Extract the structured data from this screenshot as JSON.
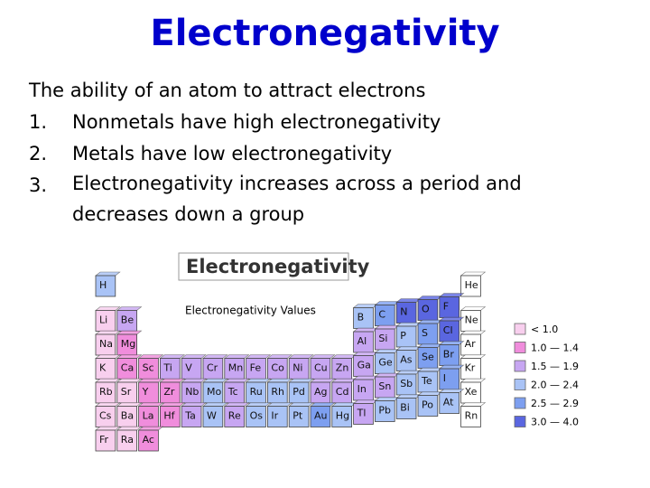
{
  "slide": {
    "title": "Electronegativity",
    "intro": "The ability of an atom to attract electrons",
    "list": [
      {
        "number": "1.",
        "text": "Nonmetals have high electronegativity"
      },
      {
        "number": "2.",
        "text": "Metals have low electronegativity"
      },
      {
        "number": "3.",
        "text": "Electronegativity increases across a period and decreases down a group"
      }
    ]
  },
  "figure": {
    "title": "Electronegativity",
    "subtitle": "Electronegativity Values",
    "legend": [
      {
        "label": "< 1.0",
        "color": "#f8cfee"
      },
      {
        "label": "1.0 — 1.4",
        "color": "#f08ddc"
      },
      {
        "label": "1.5 — 1.9",
        "color": "#c7a6f2"
      },
      {
        "label": "2.0 — 2.4",
        "color": "#a9c3f6"
      },
      {
        "label": "2.5 — 2.9",
        "color": "#7d9ff0"
      },
      {
        "label": "3.0 — 4.0",
        "color": "#5a66e0"
      }
    ],
    "periods": [
      [
        {
          "symbol": "H",
          "color": "#a9c3f6"
        },
        {
          "symbol": "He",
          "color": "#ffffff"
        }
      ],
      [
        {
          "symbol": "Li",
          "color": "#f8cfee"
        },
        {
          "symbol": "Be",
          "color": "#c7a6f2"
        },
        {
          "symbol": "B",
          "color": "#a9c3f6"
        },
        {
          "symbol": "C",
          "color": "#7d9ff0"
        },
        {
          "symbol": "N",
          "color": "#5a66e0"
        },
        {
          "symbol": "O",
          "color": "#5a66e0"
        },
        {
          "symbol": "F",
          "color": "#5a66e0"
        },
        {
          "symbol": "Ne",
          "color": "#ffffff"
        }
      ],
      [
        {
          "symbol": "Na",
          "color": "#f8cfee"
        },
        {
          "symbol": "Mg",
          "color": "#f08ddc"
        },
        {
          "symbol": "Al",
          "color": "#c7a6f2"
        },
        {
          "symbol": "Si",
          "color": "#c7a6f2"
        },
        {
          "symbol": "P",
          "color": "#a9c3f6"
        },
        {
          "symbol": "S",
          "color": "#7d9ff0"
        },
        {
          "symbol": "Cl",
          "color": "#5a66e0"
        },
        {
          "symbol": "Ar",
          "color": "#ffffff"
        }
      ],
      [
        {
          "symbol": "K",
          "color": "#f8cfee"
        },
        {
          "symbol": "Ca",
          "color": "#f08ddc"
        },
        {
          "symbol": "Sc",
          "color": "#f08ddc"
        },
        {
          "symbol": "Ti",
          "color": "#c7a6f2"
        },
        {
          "symbol": "V",
          "color": "#c7a6f2"
        },
        {
          "symbol": "Cr",
          "color": "#c7a6f2"
        },
        {
          "symbol": "Mn",
          "color": "#c7a6f2"
        },
        {
          "symbol": "Fe",
          "color": "#c7a6f2"
        },
        {
          "symbol": "Co",
          "color": "#c7a6f2"
        },
        {
          "symbol": "Ni",
          "color": "#c7a6f2"
        },
        {
          "symbol": "Cu",
          "color": "#c7a6f2"
        },
        {
          "symbol": "Zn",
          "color": "#c7a6f2"
        },
        {
          "symbol": "Ga",
          "color": "#c7a6f2"
        },
        {
          "symbol": "Ge",
          "color": "#a9c3f6"
        },
        {
          "symbol": "As",
          "color": "#a9c3f6"
        },
        {
          "symbol": "Se",
          "color": "#7d9ff0"
        },
        {
          "symbol": "Br",
          "color": "#7d9ff0"
        },
        {
          "symbol": "Kr",
          "color": "#ffffff"
        }
      ],
      [
        {
          "symbol": "Rb",
          "color": "#f8cfee"
        },
        {
          "symbol": "Sr",
          "color": "#f8cfee"
        },
        {
          "symbol": "Y",
          "color": "#f08ddc"
        },
        {
          "symbol": "Zr",
          "color": "#f08ddc"
        },
        {
          "symbol": "Nb",
          "color": "#c7a6f2"
        },
        {
          "symbol": "Mo",
          "color": "#a9c3f6"
        },
        {
          "symbol": "Tc",
          "color": "#c7a6f2"
        },
        {
          "symbol": "Ru",
          "color": "#a9c3f6"
        },
        {
          "symbol": "Rh",
          "color": "#a9c3f6"
        },
        {
          "symbol": "Pd",
          "color": "#a9c3f6"
        },
        {
          "symbol": "Ag",
          "color": "#c7a6f2"
        },
        {
          "symbol": "Cd",
          "color": "#c7a6f2"
        },
        {
          "symbol": "In",
          "color": "#c7a6f2"
        },
        {
          "symbol": "Sn",
          "color": "#c7a6f2"
        },
        {
          "symbol": "Sb",
          "color": "#a9c3f6"
        },
        {
          "symbol": "Te",
          "color": "#a9c3f6"
        },
        {
          "symbol": "I",
          "color": "#7d9ff0"
        },
        {
          "symbol": "Xe",
          "color": "#ffffff"
        }
      ],
      [
        {
          "symbol": "Cs",
          "color": "#f8cfee"
        },
        {
          "symbol": "Ba",
          "color": "#f8cfee"
        },
        {
          "symbol": "La",
          "color": "#f08ddc"
        },
        {
          "symbol": "Hf",
          "color": "#f08ddc"
        },
        {
          "symbol": "Ta",
          "color": "#c7a6f2"
        },
        {
          "symbol": "W",
          "color": "#a9c3f6"
        },
        {
          "symbol": "Re",
          "color": "#c7a6f2"
        },
        {
          "symbol": "Os",
          "color": "#a9c3f6"
        },
        {
          "symbol": "Ir",
          "color": "#a9c3f6"
        },
        {
          "symbol": "Pt",
          "color": "#a9c3f6"
        },
        {
          "symbol": "Au",
          "color": "#7d9ff0"
        },
        {
          "symbol": "Hg",
          "color": "#a9c3f6"
        },
        {
          "symbol": "Tl",
          "color": "#c7a6f2"
        },
        {
          "symbol": "Pb",
          "color": "#a9c3f6"
        },
        {
          "symbol": "Bi",
          "color": "#a9c3f6"
        },
        {
          "symbol": "Po",
          "color": "#a9c3f6"
        },
        {
          "symbol": "At",
          "color": "#a9c3f6"
        },
        {
          "symbol": "Rn",
          "color": "#ffffff"
        }
      ],
      [
        {
          "symbol": "Fr",
          "color": "#f8cfee"
        },
        {
          "symbol": "Ra",
          "color": "#f8cfee"
        },
        {
          "symbol": "Ac",
          "color": "#f08ddc"
        }
      ]
    ]
  }
}
